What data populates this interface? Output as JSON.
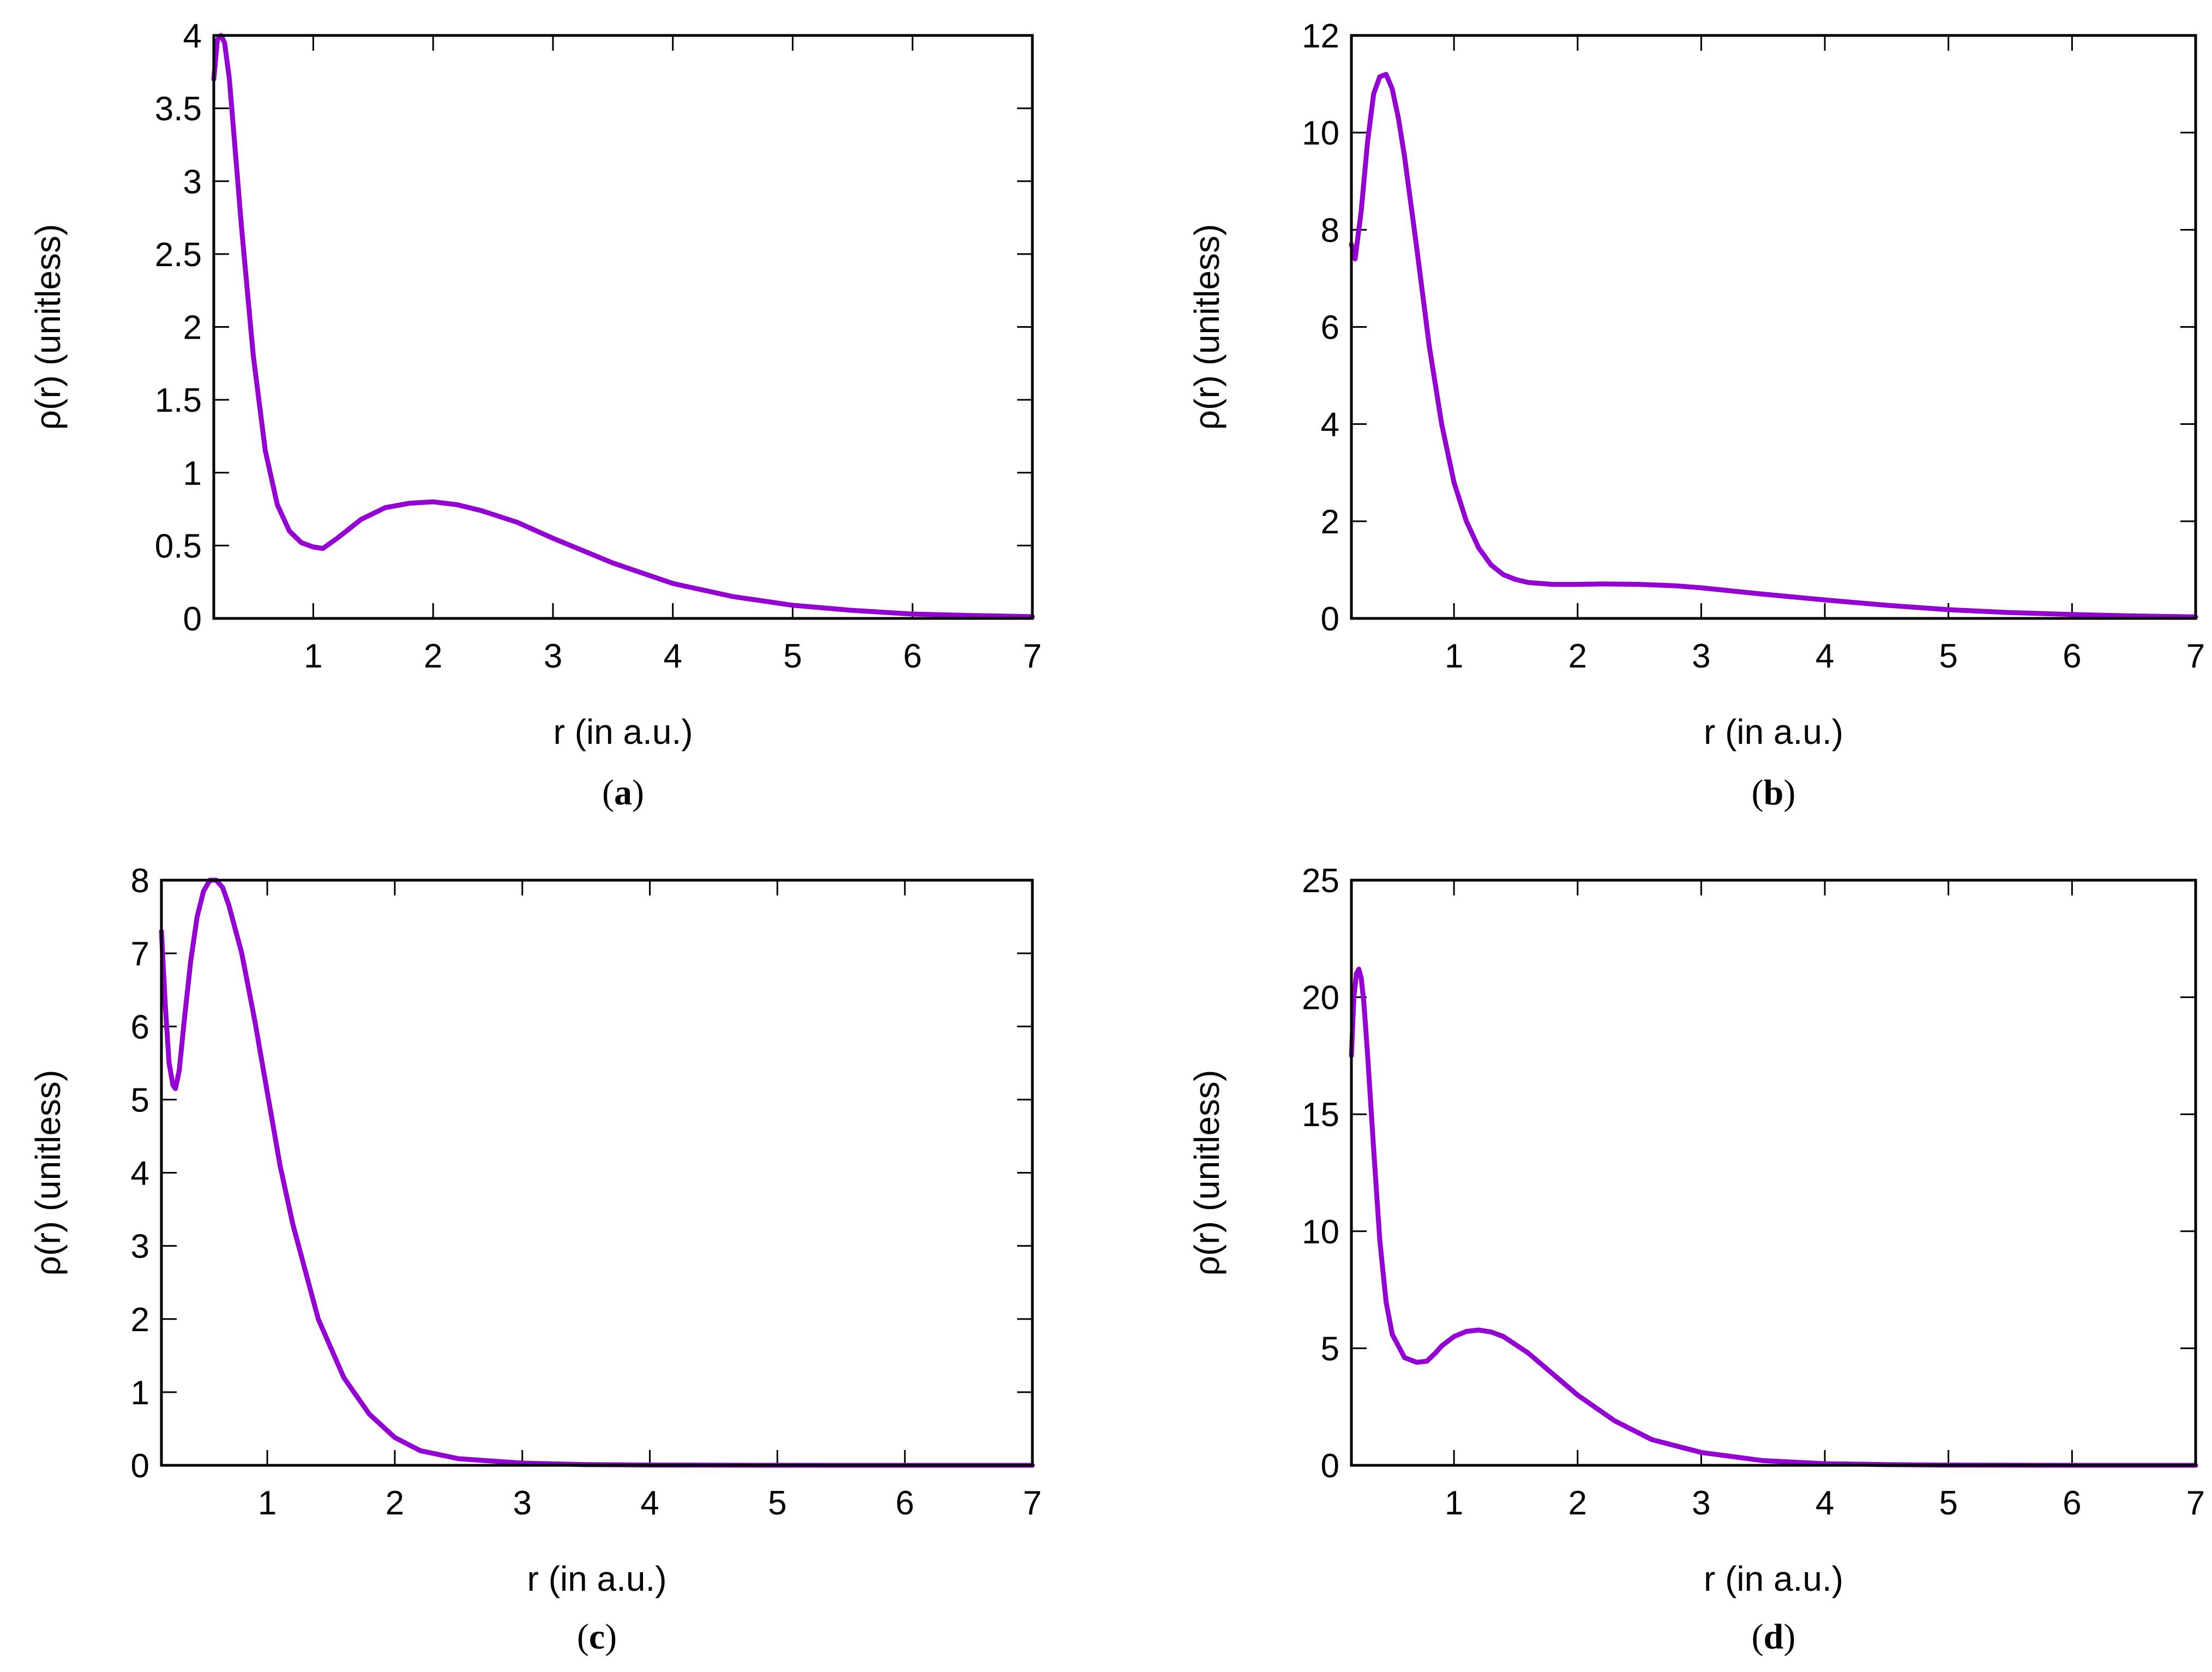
{
  "chart_data": [
    {
      "type": "line",
      "panel": "a",
      "caption_open": "(",
      "caption_letter": "a",
      "caption_close": ")",
      "xlabel": "r (in a.u.)",
      "ylabel": "ρ(r) (unitless)",
      "xlim": [
        0.17,
        7
      ],
      "ylim": [
        0,
        4
      ],
      "xticks": [
        1,
        2,
        3,
        4,
        5,
        6,
        7
      ],
      "xtick_labels": [
        "1",
        "2",
        "3",
        "4",
        "5",
        "6",
        "7"
      ],
      "yticks": [
        0,
        0.5,
        1,
        1.5,
        2,
        2.5,
        3,
        3.5,
        4
      ],
      "ytick_labels": [
        "0",
        "0.5",
        "1",
        "1.5",
        "2",
        "2.5",
        "3",
        "3.5",
        "4"
      ],
      "color": "#9400d3",
      "series": [
        {
          "name": "ρ(r)",
          "x": [
            0.17,
            0.2,
            0.23,
            0.26,
            0.3,
            0.35,
            0.4,
            0.5,
            0.6,
            0.7,
            0.8,
            0.9,
            1.0,
            1.08,
            1.2,
            1.4,
            1.6,
            1.8,
            2.0,
            2.2,
            2.4,
            2.7,
            3.0,
            3.5,
            4.0,
            4.5,
            5.0,
            5.5,
            6.0,
            6.5,
            7.0
          ],
          "y": [
            3.7,
            3.97,
            4.0,
            3.95,
            3.7,
            3.2,
            2.7,
            1.8,
            1.15,
            0.78,
            0.6,
            0.52,
            0.49,
            0.48,
            0.55,
            0.68,
            0.76,
            0.79,
            0.8,
            0.78,
            0.74,
            0.66,
            0.55,
            0.38,
            0.24,
            0.15,
            0.09,
            0.055,
            0.03,
            0.02,
            0.012
          ]
        }
      ]
    },
    {
      "type": "line",
      "panel": "b",
      "caption_open": "(",
      "caption_letter": "b",
      "caption_close": ")",
      "xlabel": "r (in a.u.)",
      "ylabel": "ρ(r) (unitless)",
      "xlim": [
        0.17,
        7
      ],
      "ylim": [
        0,
        12
      ],
      "xticks": [
        1,
        2,
        3,
        4,
        5,
        6,
        7
      ],
      "xtick_labels": [
        "1",
        "2",
        "3",
        "4",
        "5",
        "6",
        "7"
      ],
      "yticks": [
        0,
        2,
        4,
        6,
        8,
        10,
        12
      ],
      "ytick_labels": [
        "0",
        "2",
        "4",
        "6",
        "8",
        "10",
        "12"
      ],
      "color": "#9400d3",
      "series": [
        {
          "name": "ρ(r)",
          "x": [
            0.17,
            0.2,
            0.25,
            0.3,
            0.35,
            0.4,
            0.45,
            0.5,
            0.55,
            0.6,
            0.7,
            0.8,
            0.9,
            1.0,
            1.1,
            1.2,
            1.3,
            1.4,
            1.5,
            1.6,
            1.8,
            2.0,
            2.2,
            2.5,
            2.8,
            3.0,
            3.5,
            4.0,
            4.5,
            5.0,
            5.5,
            6.0,
            6.5,
            7.0
          ],
          "y": [
            7.7,
            7.4,
            8.4,
            9.8,
            10.8,
            11.15,
            11.2,
            10.9,
            10.3,
            9.5,
            7.6,
            5.6,
            4.0,
            2.8,
            2.0,
            1.45,
            1.1,
            0.9,
            0.8,
            0.74,
            0.7,
            0.7,
            0.71,
            0.7,
            0.67,
            0.63,
            0.5,
            0.38,
            0.27,
            0.18,
            0.12,
            0.08,
            0.05,
            0.03
          ]
        }
      ]
    },
    {
      "type": "line",
      "panel": "c",
      "caption_open": "(",
      "caption_letter": "c",
      "caption_close": ")",
      "xlabel": "r (in a.u.)",
      "ylabel": "ρ(r) (unitless)",
      "xlim": [
        0.17,
        7
      ],
      "ylim": [
        0,
        8
      ],
      "xticks": [
        1,
        2,
        3,
        4,
        5,
        6,
        7
      ],
      "xtick_labels": [
        "1",
        "2",
        "3",
        "4",
        "5",
        "6",
        "7"
      ],
      "yticks": [
        0,
        1,
        2,
        3,
        4,
        5,
        6,
        7,
        8
      ],
      "ytick_labels": [
        "0",
        "1",
        "2",
        "3",
        "4",
        "5",
        "6",
        "7",
        "8"
      ],
      "color": "#9400d3",
      "series": [
        {
          "name": "ρ(r)",
          "x": [
            0.17,
            0.2,
            0.23,
            0.26,
            0.28,
            0.31,
            0.35,
            0.4,
            0.45,
            0.5,
            0.55,
            0.6,
            0.65,
            0.7,
            0.8,
            0.9,
            1.0,
            1.1,
            1.2,
            1.4,
            1.6,
            1.8,
            2.0,
            2.2,
            2.5,
            3.0,
            3.5,
            4.0,
            5.0,
            6.0,
            7.0
          ],
          "y": [
            7.3,
            6.3,
            5.5,
            5.2,
            5.15,
            5.4,
            6.1,
            6.9,
            7.5,
            7.85,
            8.0,
            8.0,
            7.9,
            7.65,
            7.0,
            6.1,
            5.1,
            4.1,
            3.3,
            2.0,
            1.2,
            0.7,
            0.38,
            0.2,
            0.09,
            0.03,
            0.01,
            0.004,
            0.001,
            0.0,
            0.0
          ]
        }
      ]
    },
    {
      "type": "line",
      "panel": "d",
      "caption_open": "(",
      "caption_letter": "d",
      "caption_close": ")",
      "xlabel": "r (in a.u.)",
      "ylabel": "ρ(r) (unitless)",
      "xlim": [
        0.17,
        7
      ],
      "ylim": [
        0,
        25
      ],
      "xticks": [
        1,
        2,
        3,
        4,
        5,
        6,
        7
      ],
      "xtick_labels": [
        "1",
        "2",
        "3",
        "4",
        "5",
        "6",
        "7"
      ],
      "yticks": [
        0,
        5,
        10,
        15,
        20,
        25
      ],
      "ytick_labels": [
        "0",
        "5",
        "10",
        "15",
        "20",
        "25"
      ],
      "color": "#9400d3",
      "series": [
        {
          "name": "ρ(r)",
          "x": [
            0.17,
            0.19,
            0.21,
            0.23,
            0.25,
            0.27,
            0.3,
            0.35,
            0.4,
            0.45,
            0.5,
            0.6,
            0.7,
            0.78,
            0.85,
            0.9,
            1.0,
            1.1,
            1.2,
            1.3,
            1.4,
            1.6,
            1.8,
            2.0,
            2.3,
            2.6,
            3.0,
            3.5,
            4.0,
            4.5,
            5.0,
            6.0,
            7.0
          ],
          "y": [
            17.5,
            20.0,
            21.0,
            21.2,
            20.8,
            19.8,
            17.6,
            13.5,
            9.6,
            7.0,
            5.6,
            4.6,
            4.4,
            4.45,
            4.8,
            5.1,
            5.5,
            5.72,
            5.78,
            5.7,
            5.5,
            4.8,
            3.9,
            3.0,
            1.9,
            1.1,
            0.55,
            0.2,
            0.07,
            0.03,
            0.01,
            0.0,
            0.0
          ]
        }
      ]
    }
  ]
}
